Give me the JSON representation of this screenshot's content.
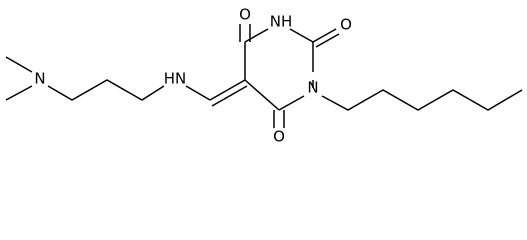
{
  "atoms": [
    {
      "label": "N"
    },
    {
      "label": "HN"
    },
    {
      "label": "O"
    },
    {
      "label": "NH"
    },
    {
      "label": "O"
    },
    {
      "label": "N"
    },
    {
      "label": "O"
    }
  ]
}
